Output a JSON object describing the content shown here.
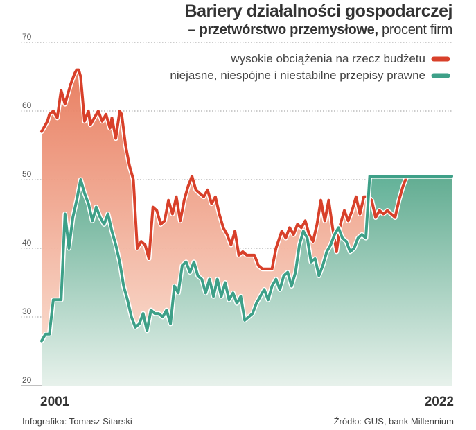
{
  "title": "Bariery działalności gospodarczej",
  "subtitle_bold": "– przetwórstwo przemysłowe,",
  "subtitle_rest": " procent firm",
  "footer": {
    "credit": "Infografika: Tomasz Sitarski",
    "source": "Źródło: GUS, bank Millennium"
  },
  "colors": {
    "series1": "#d8402a",
    "series2": "#3ea088",
    "fill1": "#ef9170",
    "fill2": "#6fb79e",
    "grid": "#9a9a9a"
  },
  "chart_data": {
    "type": "area",
    "title": "Bariery działalności gospodarczej",
    "subtitle": "– przetwórstwo przemysłowe, procent firm",
    "xlabel": "",
    "ylabel": "",
    "ylim": [
      20,
      70
    ],
    "yticks": [
      20,
      30,
      40,
      50,
      60,
      70
    ],
    "xlim": [
      2001.0,
      2022.0
    ],
    "x_tick_labels": [
      "2001",
      "2022"
    ],
    "grid": "horizontal",
    "legend_position": "top-right",
    "series": [
      {
        "name": "wysokie obciążenia na rzecz budżetu",
        "x": [
          2001.0,
          2001.1,
          2001.3,
          2001.4,
          2001.6,
          2001.8,
          2002.0,
          2002.2,
          2002.5,
          2002.7,
          2002.8,
          2002.9,
          2003.0,
          2003.2,
          2003.4,
          2003.5,
          2003.7,
          2003.9,
          2004.1,
          2004.3,
          2004.5,
          2004.6,
          2004.8,
          2005.0,
          2005.1,
          2005.3,
          2005.5,
          2005.7,
          2005.9,
          2006.1,
          2006.3,
          2006.5,
          2006.7,
          2006.9,
          2007.1,
          2007.3,
          2007.5,
          2007.7,
          2007.9,
          2008.1,
          2008.3,
          2008.5,
          2008.7,
          2008.9,
          2009.1,
          2009.3,
          2009.5,
          2009.7,
          2009.9,
          2010.1,
          2010.3,
          2010.5,
          2010.7,
          2010.9,
          2011.1,
          2011.3,
          2011.5,
          2011.7,
          2011.9,
          2012.1,
          2012.3,
          2012.6,
          2012.8,
          2013.0,
          2013.3,
          2013.5,
          2013.7,
          2013.9,
          2014.1,
          2014.3,
          2014.5,
          2014.7,
          2014.9,
          2015.1,
          2015.3,
          2015.5,
          2015.7,
          2015.9,
          2016.1,
          2016.3,
          2016.5,
          2016.7,
          2016.9,
          2017.1,
          2017.3,
          2017.5,
          2017.7,
          2017.9,
          2018.1,
          2018.3,
          2018.5,
          2018.7,
          2018.9,
          2019.1,
          2019.3,
          2019.5,
          2019.7,
          2019.9,
          2020.1,
          2020.3,
          2020.5,
          2020.7,
          2020.9,
          2021.1,
          2021.3,
          2021.5,
          2021.7,
          2022.0
        ],
        "values": [
          57.0,
          57.5,
          58.5,
          59.5,
          60.0,
          59.0,
          63.0,
          61.0,
          64.0,
          65.5,
          66.0,
          66.0,
          65.0,
          58.5,
          60.0,
          58.0,
          59.0,
          60.0,
          58.5,
          59.5,
          57.5,
          59.0,
          56.0,
          60.0,
          59.5,
          55.0,
          52.0,
          50.0,
          40.0,
          41.0,
          40.5,
          38.5,
          46.0,
          45.5,
          43.5,
          44.0,
          47.0,
          45.0,
          47.5,
          44.0,
          47.0,
          49.0,
          50.5,
          48.5,
          48.0,
          47.5,
          48.5,
          46.5,
          47.5,
          45.0,
          43.0,
          42.0,
          40.5,
          42.5,
          39.0,
          39.5,
          39.0,
          39.0,
          39.0,
          37.5,
          37.0,
          37.0,
          37.0,
          40.0,
          42.5,
          41.5,
          43.0,
          42.0,
          43.5,
          43.0,
          44.0,
          42.0,
          41.0,
          43.5,
          47.0,
          44.0,
          47.0,
          43.0,
          39.5,
          43.5,
          45.5,
          44.0,
          45.5,
          47.5,
          45.0,
          47.5,
          47.5,
          47.0,
          44.5,
          45.5,
          45.0,
          45.5,
          45.0,
          44.5,
          47.0,
          49.0,
          50.5,
          50.5,
          50.5,
          50.5,
          50.5,
          50.5,
          50.5,
          50.5,
          50.5,
          50.5,
          50.5,
          50.5
        ]
      },
      {
        "name": "niejasne, niespójne i niestabilne przepisy prawne",
        "x": [
          2001.0,
          2001.2,
          2001.4,
          2001.6,
          2001.8,
          2002.0,
          2002.2,
          2002.4,
          2002.6,
          2002.8,
          2003.0,
          2003.2,
          2003.4,
          2003.6,
          2003.8,
          2004.0,
          2004.2,
          2004.4,
          2004.6,
          2004.8,
          2005.0,
          2005.2,
          2005.4,
          2005.6,
          2005.8,
          2006.0,
          2006.2,
          2006.4,
          2006.6,
          2006.8,
          2007.0,
          2007.2,
          2007.4,
          2007.6,
          2007.8,
          2008.0,
          2008.2,
          2008.4,
          2008.6,
          2008.8,
          2009.0,
          2009.2,
          2009.4,
          2009.6,
          2009.8,
          2010.0,
          2010.2,
          2010.4,
          2010.6,
          2010.8,
          2011.0,
          2011.2,
          2011.4,
          2011.6,
          2011.8,
          2012.0,
          2012.2,
          2012.4,
          2012.6,
          2012.8,
          2013.0,
          2013.2,
          2013.4,
          2013.6,
          2013.8,
          2014.0,
          2014.2,
          2014.4,
          2014.6,
          2014.8,
          2015.0,
          2015.2,
          2015.4,
          2015.6,
          2015.8,
          2016.0,
          2016.2,
          2016.4,
          2016.6,
          2016.8,
          2017.0,
          2017.2,
          2017.4,
          2017.6,
          2017.8,
          2018.0,
          2018.2,
          2018.4,
          2018.6,
          2018.8,
          2019.0,
          2019.2,
          2019.4,
          2019.6,
          2019.8,
          2020.0,
          2020.2,
          2020.4,
          2020.6,
          2020.8,
          2021.0,
          2021.2,
          2021.4,
          2021.6,
          2021.8,
          2022.0
        ],
        "values": [
          26.5,
          27.5,
          27.5,
          32.5,
          32.5,
          32.5,
          45.0,
          40.0,
          44.5,
          47.0,
          50.0,
          48.0,
          46.5,
          44.0,
          46.0,
          44.5,
          43.5,
          45.0,
          42.5,
          40.5,
          38.0,
          34.5,
          32.5,
          30.0,
          28.5,
          29.0,
          30.5,
          28.0,
          31.0,
          30.5,
          30.5,
          30.0,
          31.0,
          29.0,
          34.5,
          33.5,
          37.5,
          38.0,
          36.5,
          38.0,
          36.0,
          35.5,
          33.5,
          35.5,
          33.0,
          35.5,
          33.0,
          35.0,
          32.5,
          33.5,
          32.0,
          33.0,
          29.5,
          30.0,
          30.5,
          32.0,
          33.0,
          34.0,
          32.5,
          34.5,
          35.5,
          34.0,
          36.0,
          36.5,
          34.5,
          36.5,
          40.5,
          42.5,
          41.5,
          38.0,
          38.5,
          36.0,
          37.5,
          39.5,
          40.5,
          42.0,
          43.0,
          41.5,
          41.0,
          39.5,
          40.0,
          41.5,
          42.0,
          41.5,
          50.5,
          50.5,
          50.5,
          50.5,
          50.5,
          50.5,
          50.5,
          50.5,
          50.5,
          50.5,
          50.5,
          50.5,
          50.5,
          50.5,
          50.5,
          50.5,
          50.5,
          50.5,
          50.5,
          50.5,
          50.5,
          50.5
        ]
      }
    ]
  }
}
